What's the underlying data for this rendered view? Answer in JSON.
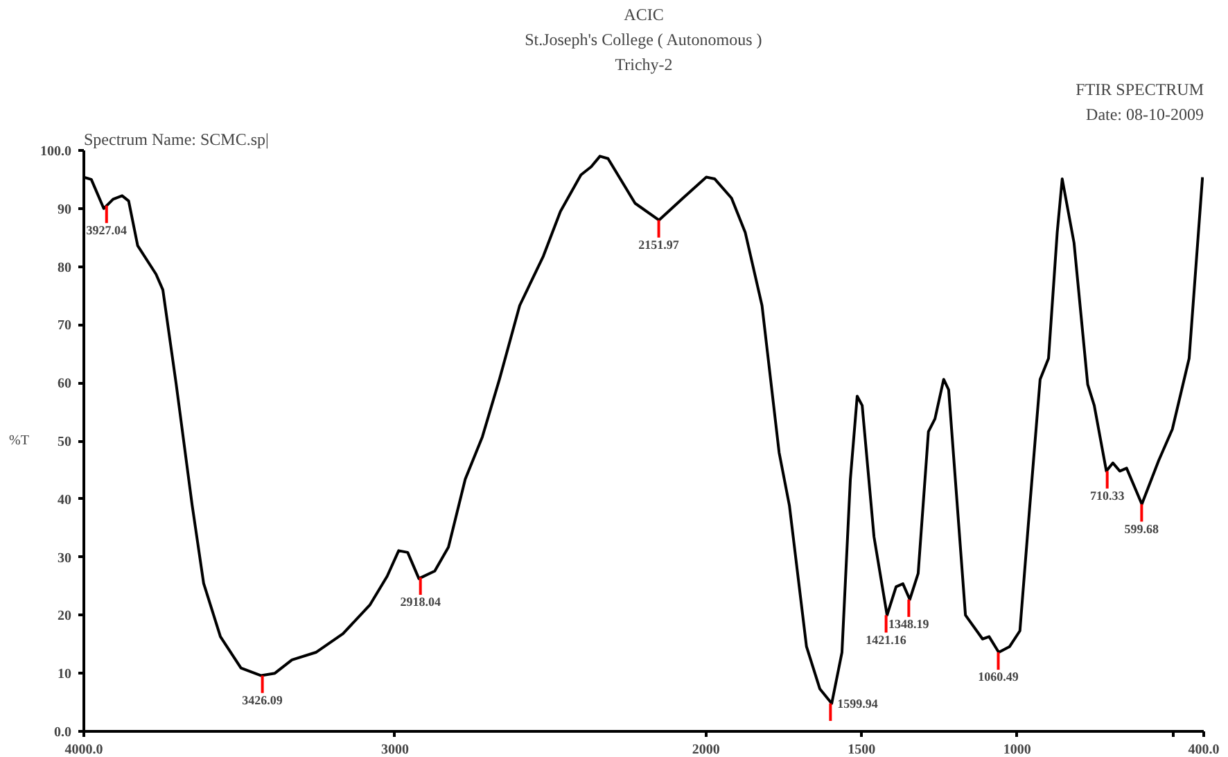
{
  "chart_data": {
    "type": "line",
    "title": "ACIC",
    "subtitle": "St.Joseph's College ( Autonomous )",
    "ylabel": "%T",
    "x": [
      4000,
      3976,
      3936,
      3906,
      3877,
      3856,
      3827,
      3768,
      3746,
      3703,
      3652,
      3615,
      3561,
      3495,
      3430,
      3386,
      3331,
      3254,
      3167,
      3080,
      3025,
      2988,
      2959,
      2923,
      2872,
      2828,
      2774,
      2719,
      2664,
      2599,
      2523,
      2468,
      2402,
      2369,
      2341,
      2315,
      2228,
      2151,
      2074,
      1999,
      1972,
      1918,
      1874,
      1820,
      1765,
      1732,
      1677,
      1634,
      1596,
      1563,
      1536,
      1514,
      1498,
      1460,
      1418,
      1389,
      1367,
      1345,
      1318,
      1285,
      1264,
      1236,
      1220,
      1166,
      1111,
      1090,
      1059,
      1024,
      991,
      959,
      926,
      899,
      871,
      855,
      817,
      773,
      752,
      713,
      692,
      670,
      648,
      599,
      545,
      501,
      447,
      404
    ],
    "series": [
      {
        "color": "#000000",
        "values": [
          95.4,
          95,
          90,
          91.6,
          92.2,
          91.3,
          83.6,
          78.7,
          76,
          59.7,
          39,
          25.5,
          16.3,
          10.9,
          9.6,
          10,
          12.3,
          13.6,
          16.8,
          21.8,
          26.7,
          31.1,
          30.8,
          26.3,
          27.6,
          31.7,
          43.4,
          50.7,
          60.6,
          73.3,
          81.8,
          89.5,
          95.8,
          97.2,
          99,
          98.6,
          90.9,
          88,
          91.8,
          95.4,
          95.1,
          91.8,
          85.9,
          73.3,
          48,
          38.9,
          14.6,
          7.3,
          4.8,
          13.6,
          43.4,
          57.7,
          56.1,
          33.5,
          20,
          24.9,
          25.4,
          22.7,
          27.2,
          51.6,
          53.8,
          60.6,
          58.8,
          20,
          15.9,
          16.3,
          13.6,
          14.6,
          17.3,
          38.9,
          60.6,
          64.2,
          85.9,
          95.1,
          84.1,
          59.7,
          56.1,
          44.8,
          46.2,
          44.8,
          45.3,
          39.1,
          46.6,
          52,
          64.2,
          95.4
        ]
      }
    ],
    "xlim": [
      4000,
      400
    ],
    "ylim": [
      0,
      100
    ],
    "xticks": [
      {
        "value": 4000,
        "label": "4000.0"
      },
      3000,
      2000,
      1500,
      1000,
      {
        "value": 500,
        "label": null
      },
      {
        "value": 400,
        "label": "400.0"
      }
    ],
    "yticks": [
      {
        "value": 0,
        "label": "0.0"
      },
      10,
      20,
      30,
      40,
      50,
      60,
      70,
      80,
      90,
      {
        "value": 100,
        "label": "100.0"
      }
    ],
    "grid": false,
    "line_style": "solid",
    "annotations": [
      "Trichy-2",
      "FTIR SPECTRUM",
      "Date: 08-10-2009",
      "Spectrum Name: SCMC.sp|",
      {
        "text": "3927.04",
        "x": 3927,
        "y": 90.5
      },
      {
        "text": "3426.09",
        "x": 3426.09,
        "y": 9.6
      },
      {
        "text": "2918.04",
        "x": 2918.04,
        "y": 26.5
      },
      {
        "text": "2151.97",
        "x": 2151.97,
        "y": 88
      },
      {
        "text": "1599.94",
        "x": 1599.94,
        "y": 4.8
      },
      {
        "text": "1421.16",
        "x": 1421.16,
        "y": 20
      },
      {
        "text": "1348.19",
        "x": 1348.19,
        "y": 22.7
      },
      {
        "text": "1060.49",
        "x": 1060.49,
        "y": 13.6
      },
      {
        "text": "710.33",
        "x": 710.33,
        "y": 44.8
      },
      {
        "text": "599.68",
        "x": 599.68,
        "y": 39.1
      }
    ]
  }
}
